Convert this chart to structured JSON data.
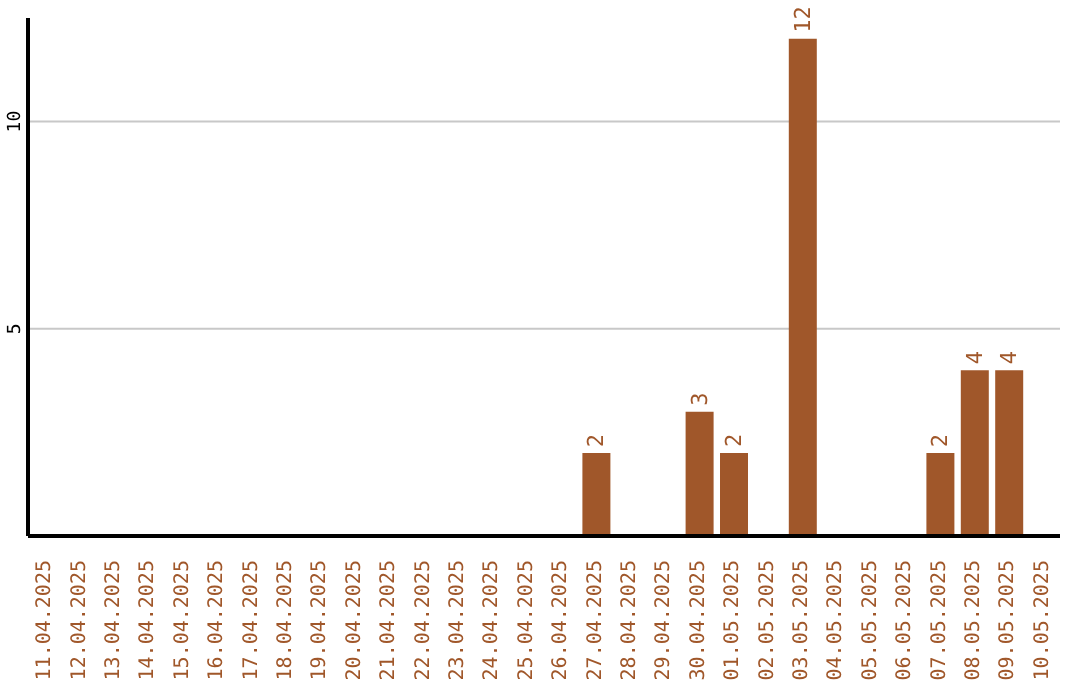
{
  "chart_data": {
    "type": "bar",
    "categories": [
      "11.04.2025",
      "12.04.2025",
      "13.04.2025",
      "14.04.2025",
      "15.04.2025",
      "16.04.2025",
      "17.04.2025",
      "18.04.2025",
      "19.04.2025",
      "20.04.2025",
      "21.04.2025",
      "22.04.2025",
      "23.04.2025",
      "24.04.2025",
      "25.04.2025",
      "26.04.2025",
      "27.04.2025",
      "28.04.2025",
      "29.04.2025",
      "30.04.2025",
      "01.05.2025",
      "02.05.2025",
      "03.05.2025",
      "04.05.2025",
      "05.05.2025",
      "06.05.2025",
      "07.05.2025",
      "08.05.2025",
      "09.05.2025",
      "10.05.2025"
    ],
    "values": [
      0,
      0,
      0,
      0,
      0,
      0,
      0,
      0,
      0,
      0,
      0,
      0,
      0,
      0,
      0,
      0,
      2,
      0,
      0,
      3,
      2,
      0,
      12,
      0,
      0,
      0,
      2,
      4,
      4,
      0
    ],
    "value_labels": [
      null,
      null,
      null,
      null,
      null,
      null,
      null,
      null,
      null,
      null,
      null,
      null,
      null,
      null,
      null,
      null,
      "2",
      null,
      null,
      "3",
      "2",
      null,
      "12",
      null,
      null,
      null,
      "2",
      "4",
      "4",
      null
    ],
    "color": "#a0572a",
    "ylim": [
      0,
      12.5
    ],
    "yticks": [
      5,
      10
    ],
    "grid": "y"
  }
}
